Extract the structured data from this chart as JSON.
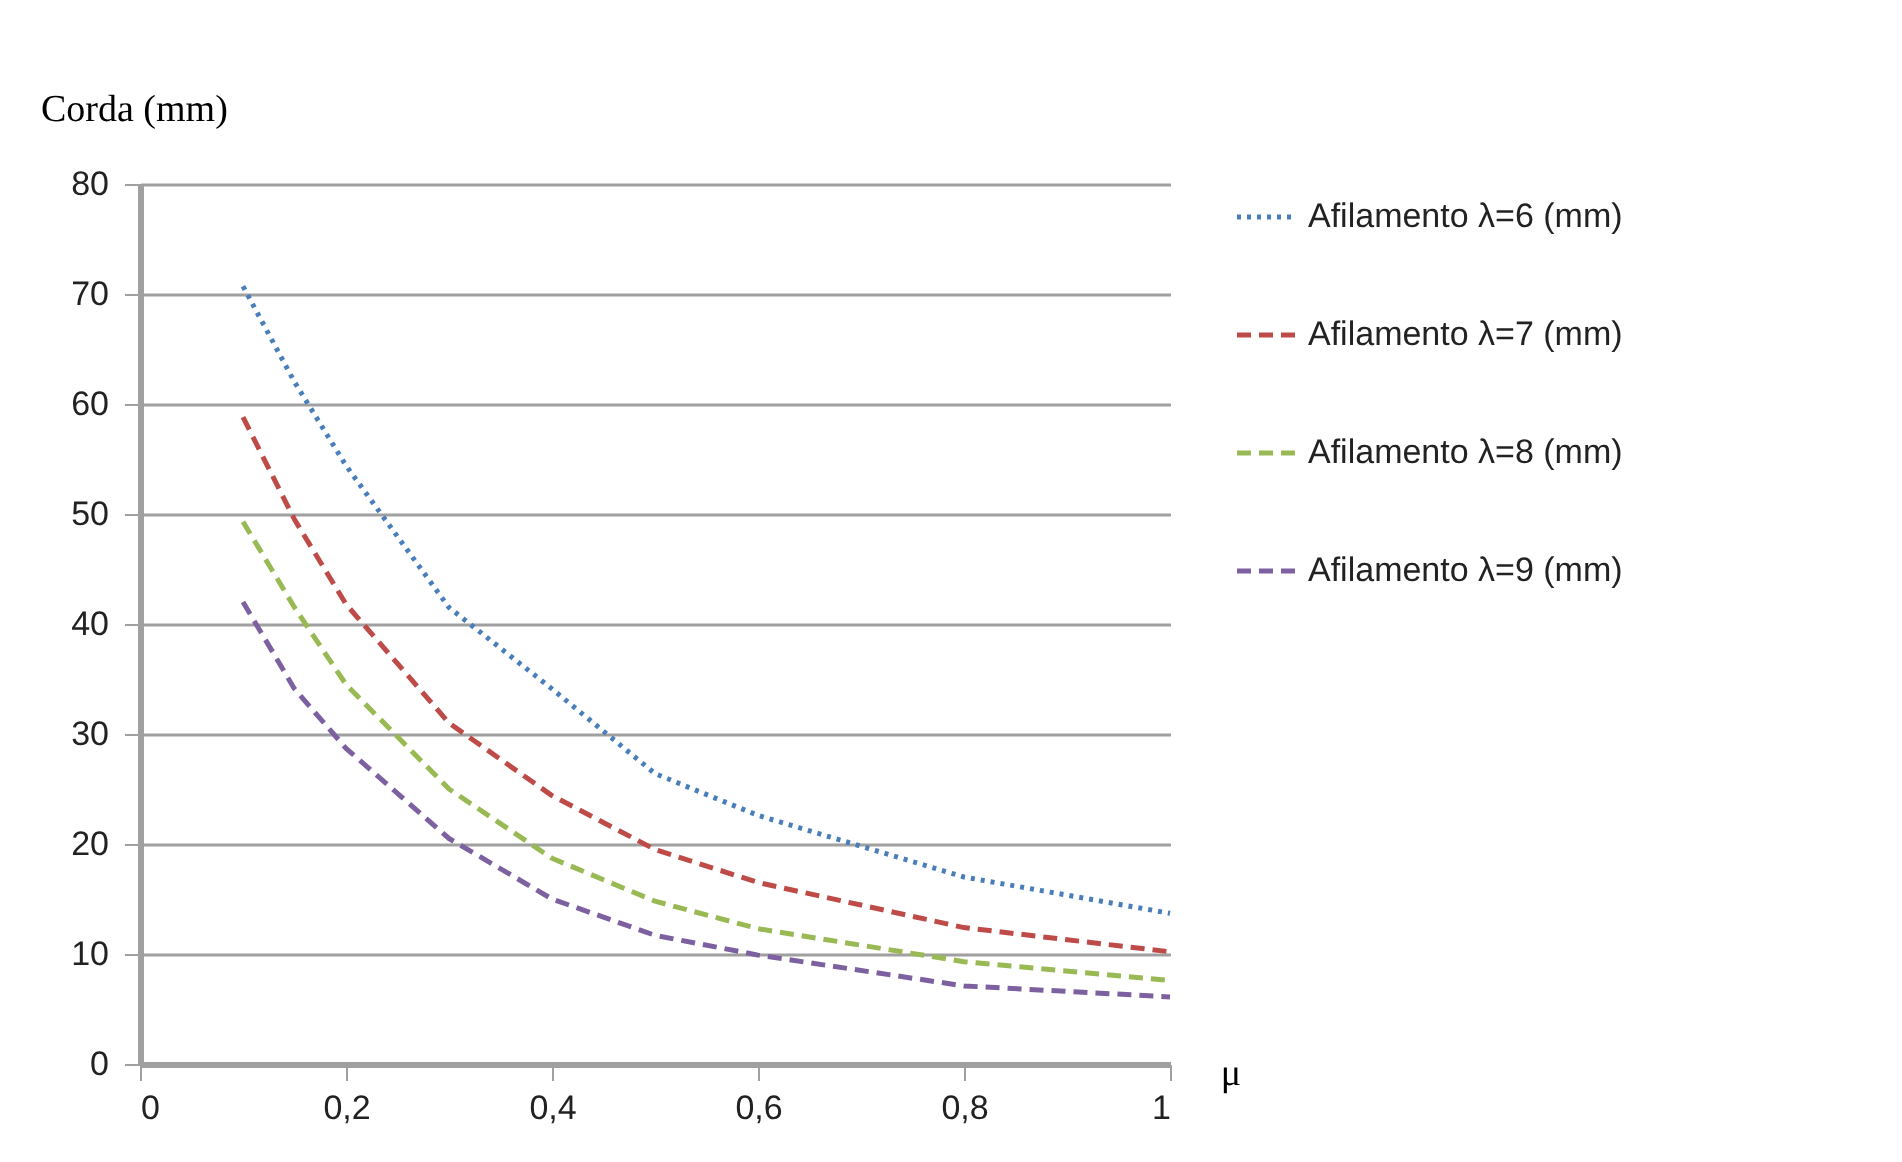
{
  "chart_data": {
    "type": "line",
    "xlabel": "μ",
    "ylabel": "Corda (mm)",
    "x": [
      0.1,
      0.15,
      0.2,
      0.3,
      0.4,
      0.5,
      0.6,
      0.8,
      1.0
    ],
    "series": [
      {
        "name": "Afilamento λ=6 (mm)",
        "color": "#4a7ebb",
        "line_style": "dotted",
        "values": [
          70.7,
          62.0,
          54.4,
          41.5,
          34.1,
          26.4,
          22.6,
          17.0,
          13.7
        ]
      },
      {
        "name": "Afilamento λ=7  (mm)",
        "color": "#be4b48",
        "line_style": "dashed",
        "values": [
          58.8,
          49.5,
          41.8,
          31.0,
          24.4,
          19.5,
          16.5,
          12.4,
          10.2
        ]
      },
      {
        "name": "Afilamento λ=8 (mm)",
        "color": "#98b954",
        "line_style": "dashed",
        "values": [
          49.3,
          41.5,
          34.5,
          25.0,
          18.7,
          14.8,
          12.3,
          9.3,
          7.6
        ]
      },
      {
        "name": "Afilamento λ=9 (mm)",
        "color": "#7d60a0",
        "line_style": "dashed",
        "values": [
          42.0,
          34.1,
          28.7,
          20.5,
          15.0,
          11.7,
          9.9,
          7.1,
          6.1
        ]
      }
    ],
    "xlim": [
      0,
      1
    ],
    "xticks": [
      0,
      {
        "value": 0.2,
        "label": "0,2"
      },
      {
        "value": 0.4,
        "label": "0,4"
      },
      {
        "value": 0.6,
        "label": "0,6"
      },
      {
        "value": 0.8,
        "label": "0,8"
      },
      1
    ],
    "ylim": [
      0,
      80
    ],
    "yticks": [
      0,
      10,
      20,
      30,
      40,
      50,
      60,
      70,
      80
    ],
    "grid": "y",
    "legend": "right",
    "marker": "none"
  }
}
